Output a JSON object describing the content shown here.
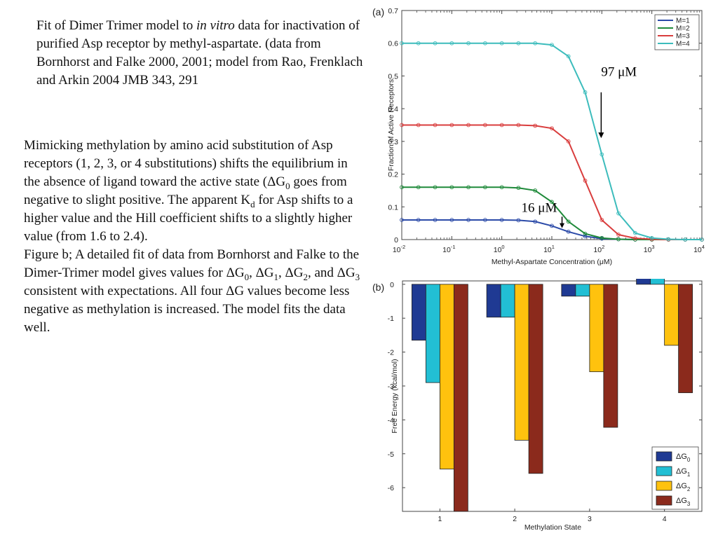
{
  "text": {
    "citation": [
      {
        "t": "Fit of Dimer Trimer model to "
      },
      {
        "t": "in vitro",
        "i": true
      },
      {
        "t": " data for inactivation of purified Asp receptor by methyl-aspartate.  (data from Bornhorst and Falke 2000, 2001;  model from Rao, Frenklach and Arkin 2004 JMB 343, 291"
      }
    ],
    "paragraph1": [
      {
        "t": "Mimicking methylation by amino acid substitution of Asp receptors (1, 2, 3, or 4 substitutions) shifts the equilibrium in the absence of ligand toward the active state (ΔG"
      },
      {
        "t": "0",
        "sub": true
      },
      {
        "t": " goes from negative to slight positive.  The apparent K"
      },
      {
        "t": "d",
        "sub": true
      },
      {
        "t": " for Asp shifts to a higher value and the Hill coefficient shifts to a slightly higher value (from 1.6 to 2.4)."
      }
    ],
    "paragraph2": [
      {
        "t": "Figure b; A detailed fit of data from Bornhorst and Falke to the Dimer-Trimer model gives values for ΔG"
      },
      {
        "t": "0",
        "sub": true
      },
      {
        "t": ", ΔG"
      },
      {
        "t": "1",
        "sub": true
      },
      {
        "t": ", ΔG"
      },
      {
        "t": "2",
        "sub": true
      },
      {
        "t": ", and ΔG"
      },
      {
        "t": "3",
        "sub": true
      },
      {
        "t": " consistent with expectations.   All four ΔG values become less negative as methylation is increased.  The model fits the data well."
      }
    ]
  },
  "chart_data": [
    {
      "id": "a",
      "panel_label": "(a)",
      "type": "line",
      "x_scale": "log",
      "xlabel": "Methyl-Aspartate Concentration (μM)",
      "ylabel": "Fraction of Active Receptors",
      "xlim": [
        0.01,
        10000
      ],
      "ylim": [
        0,
        0.7
      ],
      "x_tick_base": "10",
      "x_tick_exponents": [
        "-2",
        "-1",
        "0",
        "1",
        "2",
        "3",
        "4"
      ],
      "y_ticks": [
        "0",
        "0.1",
        "0.2",
        "0.3",
        "0.4",
        "0.5",
        "0.6",
        "0.7"
      ],
      "grid": false,
      "legend_position": "top-right",
      "x_points": [
        0.01,
        0.0215,
        0.0464,
        0.1,
        0.215,
        0.464,
        1,
        2.15,
        4.64,
        10,
        21.5,
        46.4,
        100,
        215,
        464,
        1000,
        2150,
        4640,
        10000
      ],
      "series": [
        {
          "name": "M=1",
          "color": "#2b4aa8",
          "values": [
            0.06,
            0.06,
            0.06,
            0.06,
            0.06,
            0.06,
            0.06,
            0.059,
            0.055,
            0.042,
            0.024,
            0.01,
            0.003,
            0.001,
            0,
            0,
            0,
            0,
            0
          ]
        },
        {
          "name": "M=2",
          "color": "#1f8a3a",
          "values": [
            0.16,
            0.16,
            0.16,
            0.16,
            0.16,
            0.16,
            0.16,
            0.158,
            0.15,
            0.115,
            0.055,
            0.018,
            0.005,
            0.001,
            0,
            0,
            0,
            0,
            0
          ]
        },
        {
          "name": "M=3",
          "color": "#d93d3d",
          "values": [
            0.35,
            0.35,
            0.35,
            0.35,
            0.35,
            0.35,
            0.35,
            0.35,
            0.348,
            0.34,
            0.3,
            0.18,
            0.06,
            0.015,
            0.004,
            0.001,
            0,
            0,
            0
          ]
        },
        {
          "name": "M=4",
          "color": "#3cbcbc",
          "values": [
            0.6,
            0.6,
            0.6,
            0.6,
            0.6,
            0.6,
            0.6,
            0.6,
            0.6,
            0.595,
            0.56,
            0.45,
            0.26,
            0.08,
            0.02,
            0.005,
            0.001,
            0,
            0
          ]
        }
      ],
      "annotations": [
        {
          "label": "97 μM",
          "x": 97,
          "y": 0.45,
          "tip_y": 0.31
        },
        {
          "label": "16 μM",
          "x": 16,
          "y": 0.07,
          "tip_y": 0.035
        }
      ]
    },
    {
      "id": "b",
      "panel_label": "(b)",
      "type": "bar",
      "xlabel": "Methylation State",
      "ylabel": "Free Energy (kcal/mol)",
      "categories": [
        "1",
        "2",
        "3",
        "4"
      ],
      "ylim": [
        -6.7,
        0.1
      ],
      "y_ticks": [
        "0",
        "-1",
        "-2",
        "-3",
        "-4",
        "-5",
        "-6"
      ],
      "grid": false,
      "legend_position": "bottom-right",
      "series": [
        {
          "name": "ΔG",
          "subscript": "0",
          "color": "#1f3a93",
          "values": [
            -1.65,
            -0.97,
            -0.35,
            0.2
          ]
        },
        {
          "name": "ΔG",
          "subscript": "1",
          "color": "#22bfd4",
          "values": [
            -2.9,
            -0.97,
            -0.35,
            0.2
          ]
        },
        {
          "name": "ΔG",
          "subscript": "2",
          "color": "#ffc20e",
          "values": [
            -5.45,
            -4.6,
            -2.58,
            -1.8
          ]
        },
        {
          "name": "ΔG",
          "subscript": "3",
          "color": "#8b2a1c",
          "values": [
            -6.7,
            -5.58,
            -4.22,
            -3.2
          ]
        }
      ]
    }
  ]
}
